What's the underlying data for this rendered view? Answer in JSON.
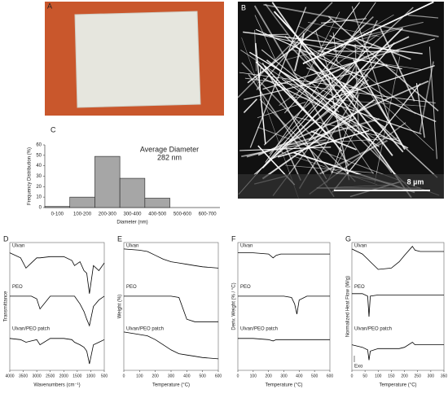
{
  "panel_labels": [
    "A",
    "B",
    "C",
    "D",
    "E",
    "F",
    "G"
  ],
  "sem_scale_bar": "8 µm",
  "chart_data": [
    {
      "type": "bar",
      "annotation": [
        "Average Diameter",
        "282 nm"
      ],
      "categories": [
        "0-100",
        "100-200",
        "200-300",
        "300-400",
        "400-500",
        "500-600",
        "600-700"
      ],
      "values": [
        1,
        10,
        49,
        28,
        9,
        0,
        0
      ],
      "color": "#a6a6a6",
      "ylim": [
        0,
        60
      ],
      "yticks": [
        0,
        10,
        20,
        30,
        40,
        50,
        60
      ],
      "y_label": "Frequency Distribution (%)",
      "x_label": "Diameter (nm)"
    },
    {
      "type": "line",
      "x_label": "Wavenumbers (cm⁻¹)",
      "y_label": "Transmittance",
      "x": [
        4000,
        3600,
        3400,
        3200,
        3000,
        2880,
        2500,
        2000,
        1700,
        1600,
        1400,
        1250,
        1150,
        1050,
        900,
        700,
        500
      ],
      "xlim": [
        4000,
        500
      ],
      "xticks": [
        4000,
        3500,
        3000,
        2500,
        2000,
        1500,
        1000,
        500
      ],
      "ylim": [
        0,
        100
      ],
      "series": [
        {
          "name": "Ulvan",
          "color": "#000000",
          "values": [
            92,
            88,
            80,
            84,
            88,
            88,
            89,
            89,
            86,
            82,
            85,
            78,
            76,
            60,
            82,
            78,
            84
          ]
        },
        {
          "name": "PEO",
          "color": "#000000",
          "values": [
            58,
            58,
            58,
            58,
            56,
            48,
            58,
            58,
            58,
            58,
            52,
            46,
            40,
            35,
            50,
            55,
            58
          ]
        },
        {
          "name": "Ulvan/PEO patch",
          "color": "#000000",
          "values": [
            25,
            24,
            22,
            23,
            24,
            20,
            25,
            25,
            24,
            22,
            20,
            18,
            15,
            5,
            20,
            22,
            24
          ]
        }
      ]
    },
    {
      "type": "line",
      "x_label": "Temperature (°C)",
      "y_label": "Weight (%)",
      "x": [
        0,
        100,
        150,
        200,
        250,
        300,
        350,
        400,
        450,
        500,
        600
      ],
      "xlim": [
        0,
        600
      ],
      "xticks": [
        0,
        100,
        200,
        300,
        400,
        500,
        600
      ],
      "ylim": [
        0,
        100
      ],
      "series": [
        {
          "name": "Ulvan",
          "color": "#000000",
          "values": [
            95,
            94,
            93,
            90,
            87,
            85,
            84,
            83,
            82,
            81,
            80
          ]
        },
        {
          "name": "PEO",
          "color": "#000000",
          "values": [
            58,
            58,
            58,
            58,
            58,
            58,
            57,
            40,
            38,
            38,
            38
          ]
        },
        {
          "name": "Ulvan/PEO patch",
          "color": "#000000",
          "values": [
            30,
            28,
            27,
            24,
            20,
            16,
            13,
            12,
            11,
            10,
            9
          ]
        }
      ]
    },
    {
      "type": "line",
      "x_label": "Temperature (°C)",
      "y_label": "Deriv. Weight (% / °C)",
      "x": [
        0,
        100,
        200,
        230,
        250,
        280,
        300,
        350,
        370,
        385,
        400,
        450,
        500,
        600
      ],
      "xlim": [
        0,
        600
      ],
      "xticks": [
        0,
        100,
        200,
        300,
        400,
        500,
        600
      ],
      "ylim": [
        0,
        100
      ],
      "series": [
        {
          "name": "Ulvan",
          "color": "#000000",
          "values": [
            92,
            92,
            91,
            88,
            90,
            91,
            91,
            91,
            91,
            91,
            91,
            91,
            91,
            91
          ]
        },
        {
          "name": "PEO",
          "color": "#000000",
          "values": [
            58,
            58,
            58,
            58,
            58,
            58,
            58,
            57,
            52,
            44,
            55,
            58,
            58,
            58
          ]
        },
        {
          "name": "Ulvan/PEO patch",
          "color": "#000000",
          "values": [
            25,
            25,
            24,
            23,
            24,
            24,
            24,
            24,
            24,
            24,
            24,
            24,
            24,
            24
          ]
        }
      ]
    },
    {
      "type": "line",
      "x_label": "Temperature (°C)",
      "y_label": "Normalized Heat Flow (W/g)",
      "exo_label": "Exo",
      "x": [
        0,
        40,
        60,
        65,
        70,
        100,
        150,
        180,
        200,
        230,
        240,
        260,
        300,
        350
      ],
      "xlim": [
        0,
        350
      ],
      "xticks": [
        0,
        50,
        100,
        150,
        200,
        250,
        300,
        350
      ],
      "ylim": [
        0,
        100
      ],
      "series": [
        {
          "name": "Ulvan",
          "color": "#000000",
          "values": [
            95,
            91,
            87,
            86,
            85,
            79,
            80,
            85,
            90,
            97,
            94,
            93,
            93,
            93
          ]
        },
        {
          "name": "PEO",
          "color": "#000000",
          "values": [
            60,
            60,
            58,
            42,
            58,
            59,
            59,
            59,
            59,
            59,
            59,
            59,
            59,
            59
          ]
        },
        {
          "name": "Ulvan/PEO patch",
          "color": "#000000",
          "values": [
            20,
            18,
            16,
            8,
            15,
            17,
            17,
            17,
            18,
            22,
            20,
            20,
            20,
            20
          ]
        }
      ]
    }
  ]
}
